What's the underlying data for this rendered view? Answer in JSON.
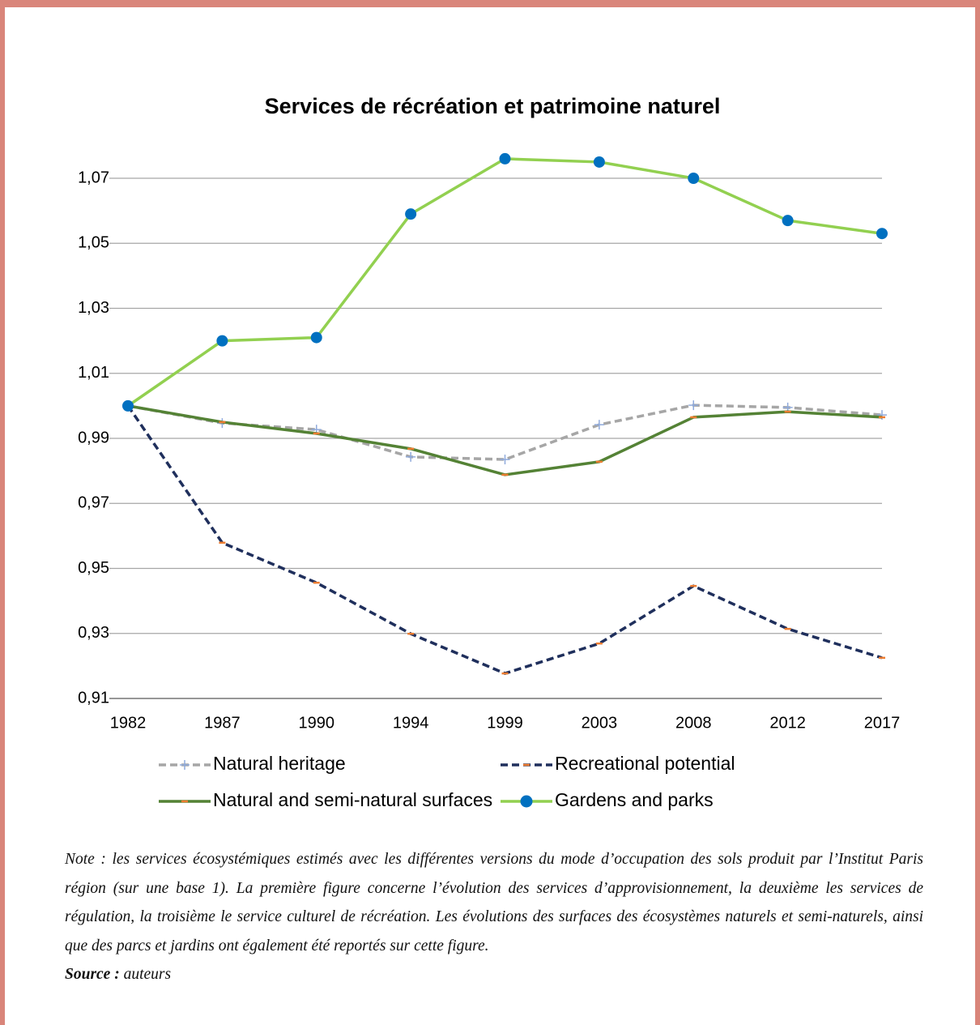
{
  "chart_data": {
    "type": "line",
    "title": "Services de récréation et patrimoine naturel",
    "categories": [
      "1982",
      "1987",
      "1990",
      "1994",
      "1999",
      "2003",
      "2008",
      "2012",
      "2017"
    ],
    "ylim": [
      0.91,
      1.07
    ],
    "yticks": [
      {
        "value": 0.91,
        "label": "0,91"
      },
      {
        "value": 0.93,
        "label": "0,93"
      },
      {
        "value": 0.95,
        "label": "0,95"
      },
      {
        "value": 0.97,
        "label": "0,97"
      },
      {
        "value": 0.99,
        "label": "0,99"
      },
      {
        "value": 1.01,
        "label": "1,01"
      },
      {
        "value": 1.03,
        "label": "1,03"
      },
      {
        "value": 1.05,
        "label": "1,05"
      },
      {
        "value": 1.07,
        "label": "1,07"
      }
    ],
    "grid": true,
    "legend": "bottom",
    "series": [
      {
        "name": "Natural heritage",
        "color": "#a6a6a6",
        "line_style": "dashed",
        "marker": "plus",
        "marker_color": "#8faadc",
        "values": [
          1.0,
          0.9947,
          0.9927,
          0.9843,
          0.9835,
          0.9942,
          1.0002,
          0.9995,
          0.9972
        ]
      },
      {
        "name": "Recreational potential",
        "color": "#1f2f5c",
        "line_style": "dashed",
        "marker": "dash",
        "marker_color": "#ed7d31",
        "values": [
          1.0,
          0.9579,
          0.9456,
          0.9299,
          0.9177,
          0.9269,
          0.9446,
          0.9314,
          0.9225
        ]
      },
      {
        "name": "Natural and semi-natural surfaces",
        "color": "#548235",
        "line_style": "solid",
        "marker": "dash",
        "marker_color": "#ed7d31",
        "values": [
          1.0,
          0.995,
          0.9915,
          0.9868,
          0.9788,
          0.9828,
          0.9965,
          0.9982,
          0.9965
        ]
      },
      {
        "name": "Gardens and parks",
        "color": "#92d050",
        "line_style": "solid",
        "marker": "circle",
        "marker_color": "#0070c0",
        "values": [
          1.0,
          1.02,
          1.021,
          1.059,
          1.076,
          1.075,
          1.07,
          1.057,
          1.053
        ]
      }
    ]
  },
  "note": {
    "text": "Note : les services écosystémiques estimés avec les différentes versions du mode d’occupation des sols produit par l’Institut Paris région (sur une base 1). La première figure concerne l’évolution des services d’approvisionnement, la deuxième les services de régulation, la troisième le service culturel de récréation. Les évolutions des surfaces des écosystèmes naturels et semi-naturels, ainsi que des parcs et jardins ont également été reportés sur cette figure.",
    "source_label": "Source :",
    "source_text": "auteurs"
  }
}
